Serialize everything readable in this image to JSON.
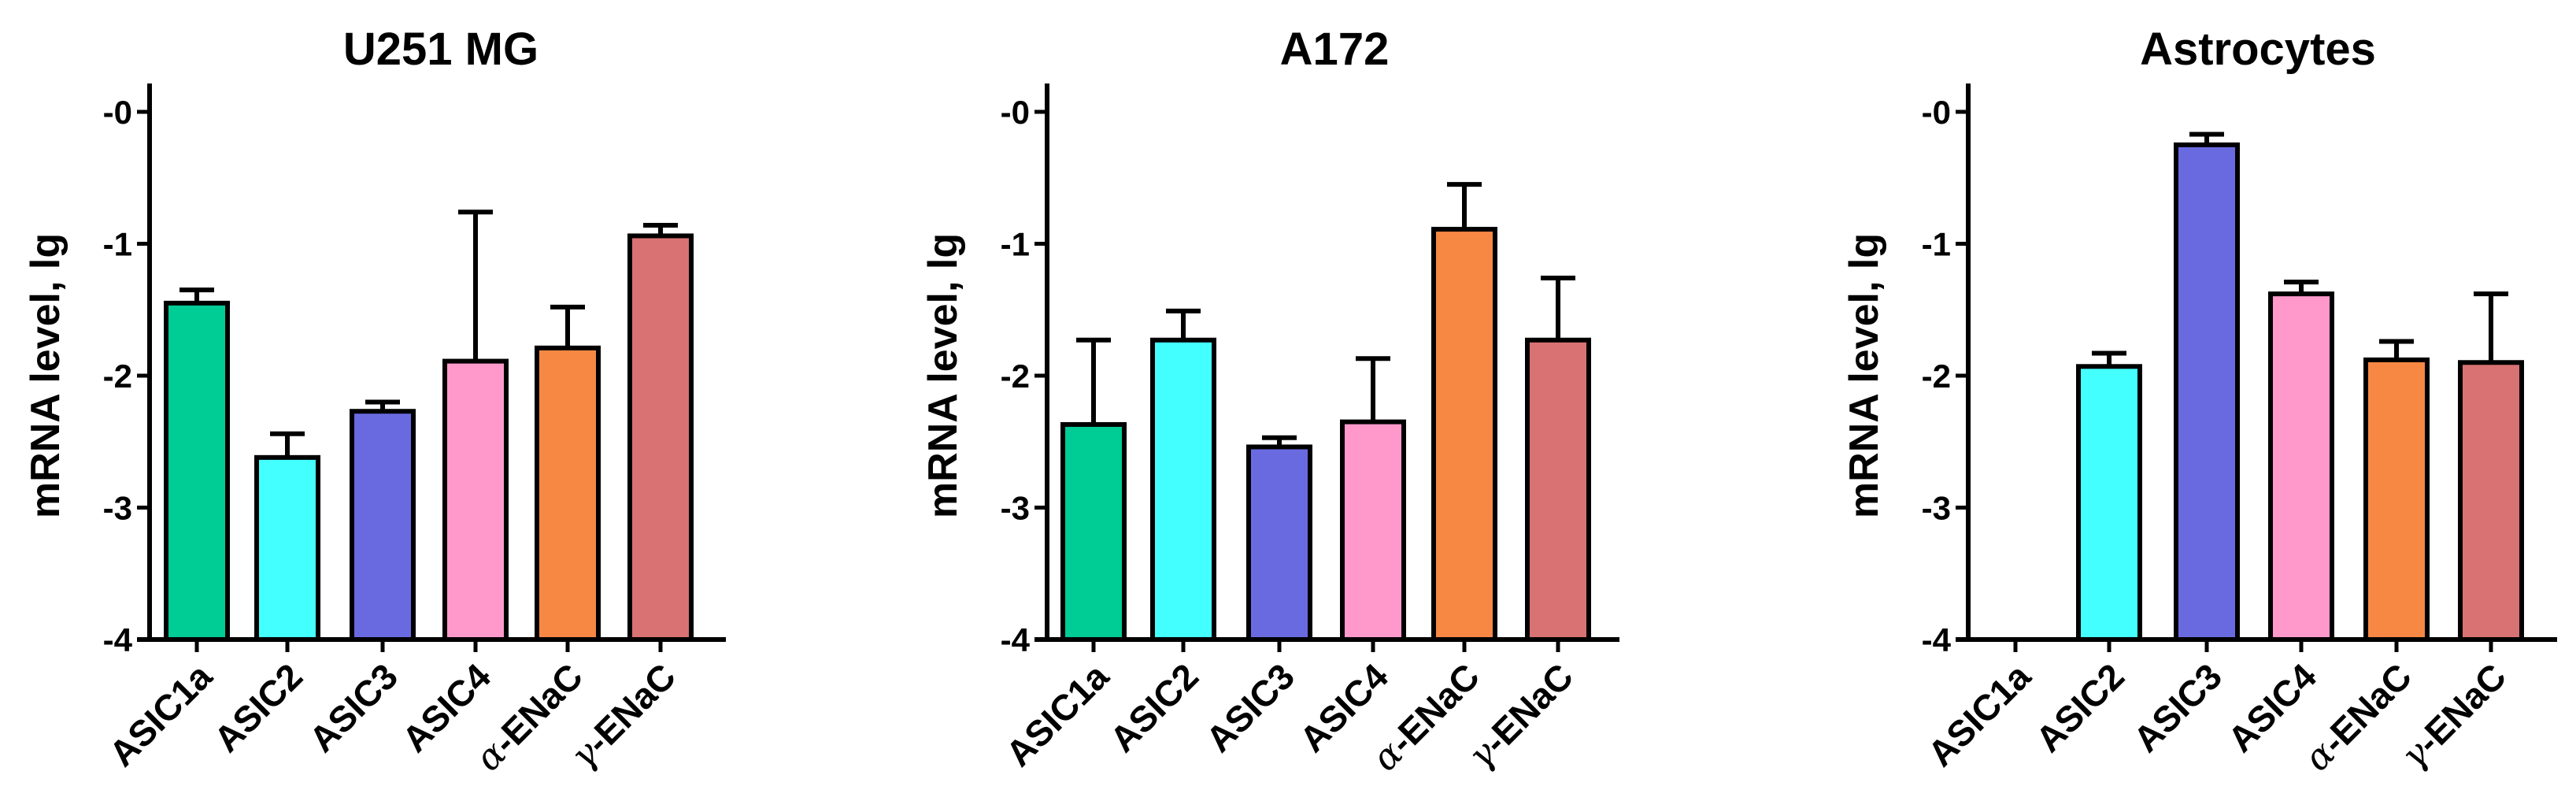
{
  "chart_data": [
    {
      "type": "bar",
      "title": "U251 MG",
      "ylabel": "mRNA level, lg",
      "ylim": [
        -4,
        0
      ],
      "yticks": [
        "-0",
        "-1",
        "-2",
        "-3",
        "-4"
      ],
      "categories": [
        {
          "greek": "",
          "text": "ASIC1a"
        },
        {
          "greek": "",
          "text": "ASIC2"
        },
        {
          "greek": "",
          "text": "ASIC3"
        },
        {
          "greek": "",
          "text": "ASIC4"
        },
        {
          "greek": "α",
          "text": "-ENaC"
        },
        {
          "greek": "γ",
          "text": "-ENaC"
        }
      ],
      "values": [
        -1.45,
        -2.62,
        -2.27,
        -1.89,
        -1.79,
        -0.94
      ],
      "error_top": [
        -1.35,
        -2.44,
        -2.2,
        -0.76,
        -1.48,
        -0.86
      ]
    },
    {
      "type": "bar",
      "title": "A172",
      "ylabel": "mRNA level, lg",
      "ylim": [
        -4,
        0
      ],
      "yticks": [
        "-0",
        "-1",
        "-2",
        "-3",
        "-4"
      ],
      "categories": [
        {
          "greek": "",
          "text": "ASIC1a"
        },
        {
          "greek": "",
          "text": "ASIC2"
        },
        {
          "greek": "",
          "text": "ASIC3"
        },
        {
          "greek": "",
          "text": "ASIC4"
        },
        {
          "greek": "α",
          "text": "-ENaC"
        },
        {
          "greek": "γ",
          "text": "-ENaC"
        }
      ],
      "values": [
        -2.37,
        -1.73,
        -2.54,
        -2.35,
        -0.89,
        -1.73
      ],
      "error_top": [
        -1.73,
        -1.51,
        -2.47,
        -1.87,
        -0.55,
        -1.26
      ]
    },
    {
      "type": "bar",
      "title": "Astrocytes",
      "ylabel": "mRNA level, lg",
      "ylim": [
        -4,
        0
      ],
      "yticks": [
        "-0",
        "-1",
        "-2",
        "-3",
        "-4"
      ],
      "categories": [
        {
          "greek": "",
          "text": "ASIC1a"
        },
        {
          "greek": "",
          "text": "ASIC2"
        },
        {
          "greek": "",
          "text": "ASIC3"
        },
        {
          "greek": "",
          "text": "ASIC4"
        },
        {
          "greek": "α",
          "text": "-ENaC"
        },
        {
          "greek": "γ",
          "text": "-ENaC"
        }
      ],
      "values": [
        null,
        -1.93,
        -0.25,
        -1.38,
        -1.88,
        -1.9
      ],
      "error_top": [
        null,
        -1.83,
        -0.17,
        -1.29,
        -1.74,
        -1.38
      ]
    }
  ],
  "colors": [
    "#00cc96",
    "#44ffff",
    "#6a6ae0",
    "#ff99cc",
    "#f78844",
    "#d97272"
  ]
}
